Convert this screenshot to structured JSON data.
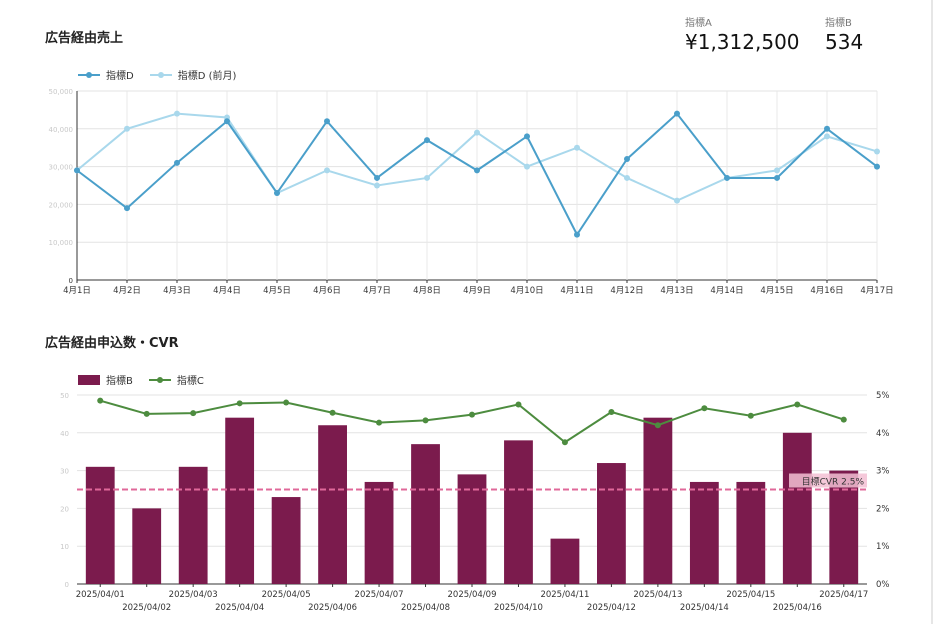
{
  "section1": {
    "title": "広告経由売上",
    "kpis": [
      {
        "label": "指標A",
        "value": "¥1,312,500"
      },
      {
        "label": "指標B",
        "value": "534"
      }
    ]
  },
  "section2": {
    "title": "広告経由申込数・CVR"
  },
  "colors": {
    "lineCurrent": "#4a9fca",
    "linePrev": "#a9d8ec",
    "bar": "#7b1b4d",
    "cvrLine": "#4d8c3f",
    "target": "#e0689a"
  },
  "chart_data": [
    {
      "type": "line",
      "x": [
        "4月1日",
        "4月2日",
        "4月3日",
        "4月4日",
        "4月5日",
        "4月6日",
        "4月7日",
        "4月8日",
        "4月9日",
        "4月10日",
        "4月11日",
        "4月12日",
        "4月13日",
        "4月14日",
        "4月15日",
        "4月16日",
        "4月17日"
      ],
      "series": [
        {
          "name": "指標D",
          "values": [
            29000,
            19000,
            31000,
            42000,
            23000,
            42000,
            27000,
            37000,
            29000,
            38000,
            12000,
            32000,
            44000,
            27000,
            27000,
            40000,
            30000
          ]
        },
        {
          "name": "指標D (前月)",
          "values": [
            29000,
            40000,
            44000,
            43000,
            23000,
            29000,
            25000,
            27000,
            39000,
            30000,
            35000,
            27000,
            21000,
            27000,
            29000,
            38000,
            34000
          ]
        }
      ],
      "yticks": [
        "0",
        "10,000",
        "20,000",
        "30,000",
        "40,000",
        "50,000"
      ],
      "ylim": [
        0,
        50000
      ],
      "grid": true,
      "legend": "top-left"
    },
    {
      "type": "bar",
      "x": [
        "2025/04/01",
        "2025/04/02",
        "2025/04/03",
        "2025/04/04",
        "2025/04/05",
        "2025/04/06",
        "2025/04/07",
        "2025/04/08",
        "2025/04/09",
        "2025/04/10",
        "2025/04/11",
        "2025/04/12",
        "2025/04/13",
        "2025/04/14",
        "2025/04/15",
        "2025/04/16",
        "2025/04/17"
      ],
      "series": [
        {
          "name": "指標B",
          "axis": "left",
          "values": [
            31,
            20,
            31,
            44,
            23,
            42,
            27,
            37,
            29,
            38,
            12,
            32,
            44,
            27,
            27,
            40,
            30
          ]
        },
        {
          "name": "指標C",
          "type": "line",
          "axis": "right",
          "values": [
            4.85,
            4.5,
            4.52,
            4.78,
            4.8,
            4.53,
            4.27,
            4.33,
            4.48,
            4.75,
            3.75,
            4.55,
            4.2,
            4.65,
            4.45,
            4.75,
            4.35
          ]
        }
      ],
      "ylim": [
        0,
        50
      ],
      "yticks": [
        "0",
        "10",
        "20",
        "30",
        "40",
        "50"
      ],
      "y2ticks": [
        "0%",
        "1%",
        "2%",
        "3%",
        "4%",
        "5%"
      ],
      "y2lim": [
        0,
        5
      ],
      "target": {
        "label": "目標CVR 2.5%",
        "value": 2.5
      },
      "grid": true,
      "legend": "top-left"
    }
  ]
}
